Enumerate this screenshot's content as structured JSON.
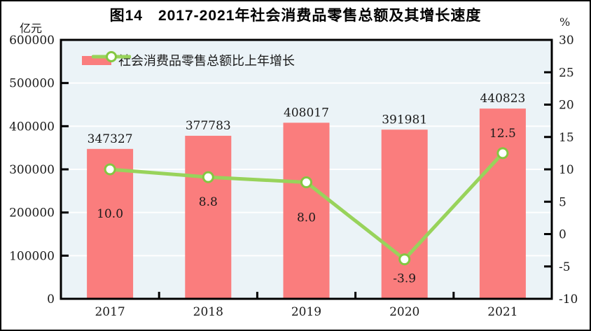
{
  "page": {
    "title": "图14　2017-2021年社会消费品零售总额及其增长速度",
    "left_axis_unit": "亿元",
    "right_axis_unit": "%"
  },
  "legend": {
    "items": [
      {
        "label": "社会消费品零售总额",
        "type": "bar-swatch"
      },
      {
        "label": "比上年增长",
        "type": "line-marker"
      }
    ]
  },
  "chart_data": {
    "type": "bar+line",
    "title": "图14　2017-2021年社会消费品零售总额及其增长速度",
    "categories": [
      "2017",
      "2018",
      "2019",
      "2020",
      "2021"
    ],
    "series": [
      {
        "name": "社会消费品零售总额",
        "type": "bar",
        "axis": "left",
        "values": [
          347327,
          377783,
          408017,
          391981,
          440823
        ],
        "labels": [
          "347327",
          "377783",
          "408017",
          "391981",
          "440823"
        ]
      },
      {
        "name": "比上年增长",
        "type": "line",
        "axis": "right",
        "values": [
          10.0,
          8.8,
          8.0,
          -3.9,
          12.5
        ],
        "labels": [
          "10.0",
          "8.8",
          "8.0",
          "-3.9",
          "12.5"
        ],
        "label_dy": [
          69,
          41,
          56,
          33,
          -23
        ]
      }
    ],
    "left_axis": {
      "unit": "亿元",
      "min": 0,
      "max": 600000,
      "step": 100000,
      "ticks": [
        "600000",
        "500000",
        "400000",
        "300000",
        "200000",
        "100000",
        "0"
      ]
    },
    "right_axis": {
      "unit": "%",
      "min": -10,
      "max": 30,
      "step": 5,
      "ticks": [
        "30",
        "25",
        "20",
        "15",
        "10",
        "5",
        "0",
        "-5",
        "-10"
      ]
    },
    "layout": {
      "grid": "horizontal-white-lines",
      "legend_position": "top-inside",
      "bar_labels": "above-bars",
      "line_labels": "near-markers"
    },
    "colors": {
      "bar": "#FA7D7D",
      "line": "#98D35B",
      "marker_ring": "#84C741",
      "marker_fill": "#FFFFFF",
      "plot_bg": "#EBF3F7",
      "gridline": "#FFFFFF",
      "axis": "#000000",
      "text": "#1A1A1A"
    }
  }
}
